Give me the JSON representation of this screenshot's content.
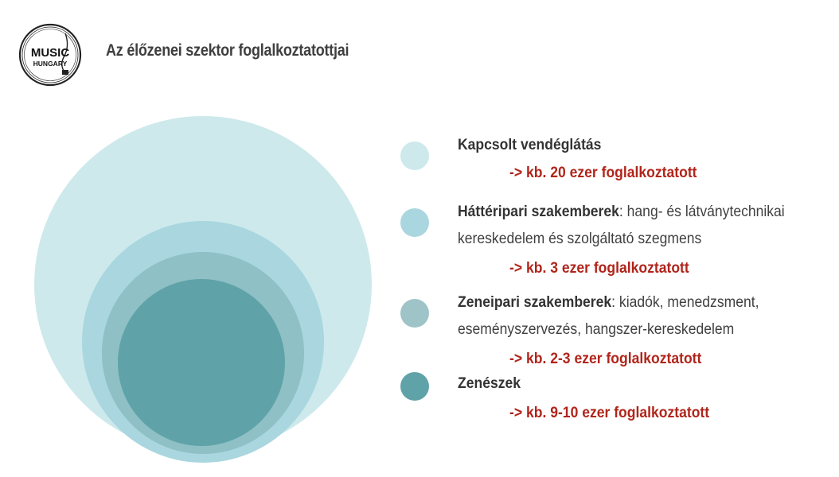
{
  "logo": {
    "line1": "MUSIC",
    "line2": "HUNGARY",
    "icon": "music-hungary-logo"
  },
  "title": "Az élőzenei szektor foglalkoztatottjai",
  "colors": {
    "kapcsolt": "#cde9ec",
    "hatteripari": "#a9d6df",
    "zeneipari": "#8fc0c6",
    "zeneszek": "#5fa3a8",
    "count": "#b0251b"
  },
  "legend": [
    {
      "name": "Kapcsolt vendéglátás",
      "desc_line1": "",
      "desc_line2": "",
      "count": "-> kb. 20 ezer foglalkoztatott"
    },
    {
      "name": "Háttéripari szakemberek",
      "desc_line1": ": hang- és látványtechnikai",
      "desc_line2": "kereskedelem és szolgáltató szegmens",
      "count": "-> kb. 3 ezer foglalkoztatott"
    },
    {
      "name": "Zeneipari szakemberek",
      "desc_line1": ": kiadók, menedzsment,",
      "desc_line2": "eseményszervezés, hangszer-kereskedelem",
      "count": "-> kb. 2-3 ezer foglalkoztatott"
    },
    {
      "name": "Zenészek",
      "desc_line1": "",
      "desc_line2": "",
      "count": "-> kb. 9-10 ezer foglalkoztatott"
    }
  ]
}
